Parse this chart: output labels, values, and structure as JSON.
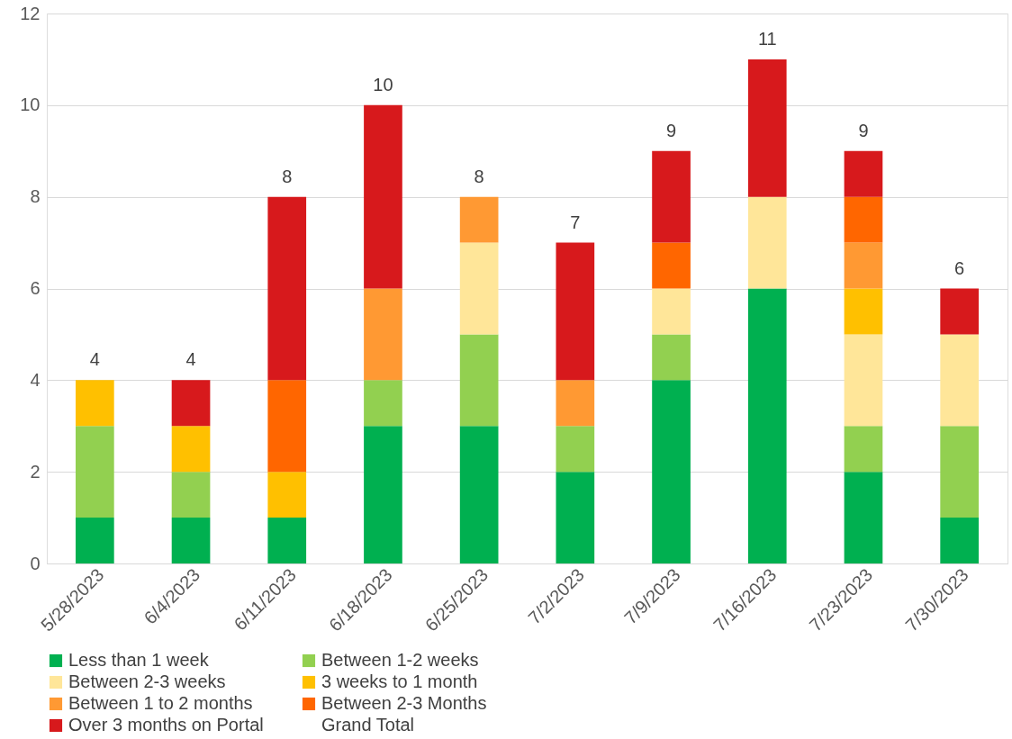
{
  "chart_data": {
    "type": "bar",
    "stacked": true,
    "categories": [
      "5/28/2023",
      "6/4/2023",
      "6/11/2023",
      "6/18/2023",
      "6/25/2023",
      "7/2/2023",
      "7/9/2023",
      "7/16/2023",
      "7/23/2023",
      "7/30/2023"
    ],
    "series": [
      {
        "name": "Less than 1 week",
        "color": "#00b050",
        "values": [
          1,
          1,
          1,
          3,
          3,
          2,
          4,
          6,
          2,
          1
        ]
      },
      {
        "name": "Between 1-2 weeks",
        "color": "#92d050",
        "values": [
          2,
          1,
          0,
          1,
          2,
          1,
          1,
          0,
          1,
          2
        ]
      },
      {
        "name": "Between 2-3 weeks",
        "color": "#ffe699",
        "values": [
          0,
          0,
          0,
          0,
          2,
          0,
          1,
          2,
          2,
          2
        ]
      },
      {
        "name": "3 weeks to 1 month",
        "color": "#ffc000",
        "values": [
          1,
          1,
          1,
          0,
          0,
          0,
          0,
          0,
          1,
          0
        ]
      },
      {
        "name": "Between 1 to 2 months",
        "color": "#ff9933",
        "values": [
          0,
          0,
          0,
          2,
          1,
          1,
          0,
          0,
          1,
          0
        ]
      },
      {
        "name": "Between 2-3 Months",
        "color": "#ff6600",
        "values": [
          0,
          0,
          2,
          0,
          0,
          0,
          1,
          0,
          1,
          0
        ]
      },
      {
        "name": "Over 3 months on Portal",
        "color": "#d7191c",
        "values": [
          0,
          1,
          4,
          4,
          0,
          3,
          2,
          3,
          1,
          1
        ]
      }
    ],
    "totals": [
      "4",
      "4",
      "8",
      "10",
      "8",
      "7",
      "9",
      "11",
      "9",
      "6"
    ],
    "annotations": [
      "Grand Total"
    ],
    "ylim": [
      0,
      12
    ],
    "yticks": [
      0,
      2,
      4,
      6,
      8,
      10,
      12
    ],
    "grid": "y",
    "legend": "bottom"
  }
}
